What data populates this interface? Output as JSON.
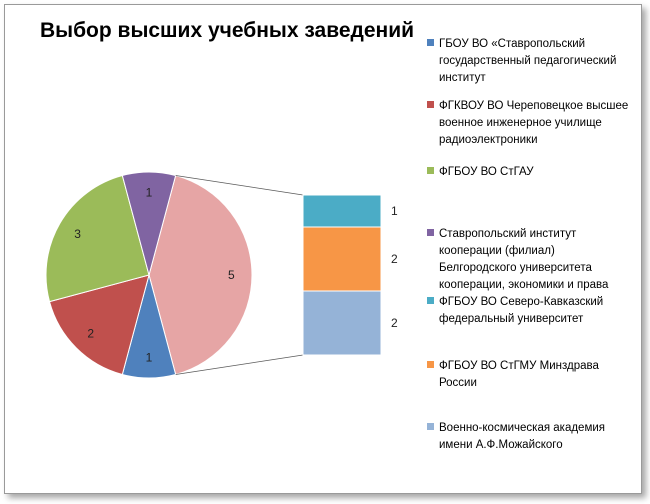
{
  "chart_data": {
    "type": "pie",
    "subtype": "bar-of-pie",
    "title": "Выбор высших учебных заведений",
    "series": [
      {
        "name": "ГБОУ ВО «Ставропольский государственный педагогический институт",
        "value": 1,
        "color": "#4f81bd",
        "group": "pie"
      },
      {
        "name": "ФГКВОУ ВО Череповецкое высшее военное инженерное училище радиоэлектроники",
        "value": 2,
        "color": "#c0504d",
        "group": "pie"
      },
      {
        "name": "ФГБОУ ВО СтГАУ",
        "value": 3,
        "color": "#9bbb59",
        "group": "pie"
      },
      {
        "name": "Ставропольский институт кооперации (филиал) Белгородского университета кооперации, экономики и права",
        "value": 1,
        "color": "#8064a2",
        "group": "pie"
      },
      {
        "name": "ФГБОУ ВО Северо-Кавказский федеральный университет",
        "value": 1,
        "color": "#4bacc6",
        "group": "bar"
      },
      {
        "name": "ФГБОУ ВО СтГМУ Минздрава России",
        "value": 2,
        "color": "#f79646",
        "group": "bar"
      },
      {
        "name": "Военно-космическая академия имени А.Ф.Можайского",
        "value": 2,
        "color": "#95b3d7",
        "group": "bar"
      }
    ],
    "other": {
      "value": 5,
      "color": "#e6a5a5"
    },
    "legend_position": "right",
    "legend": [
      {
        "lines": [
          "ГБОУ ВО «Ставропольский",
          "государственный педагогический",
          "институт"
        ],
        "color": "#4f81bd"
      },
      {
        "lines": [
          "ФГКВОУ ВО Череповецкое высшее",
          "военное инженерное училище",
          "радиоэлектроники"
        ],
        "color": "#c0504d"
      },
      {
        "lines": [
          "ФГБОУ ВО СтГАУ"
        ],
        "color": "#9bbb59"
      },
      {
        "lines": [
          "Ставропольский институт",
          "кооперации (филиал)",
          "Белгородского университета",
          "кооперации, экономики и права"
        ],
        "color": "#8064a2"
      },
      {
        "lines": [
          "ФГБОУ ВО Северо-Кавказский",
          "федеральный университет"
        ],
        "color": "#4bacc6"
      },
      {
        "lines": [
          "ФГБОУ ВО СтГМУ Минздрава",
          "России"
        ],
        "color": "#f79646"
      },
      {
        "lines": [
          "Военно-космическая академия",
          "имени А.Ф.Можайского"
        ],
        "color": "#95b3d7"
      }
    ]
  }
}
